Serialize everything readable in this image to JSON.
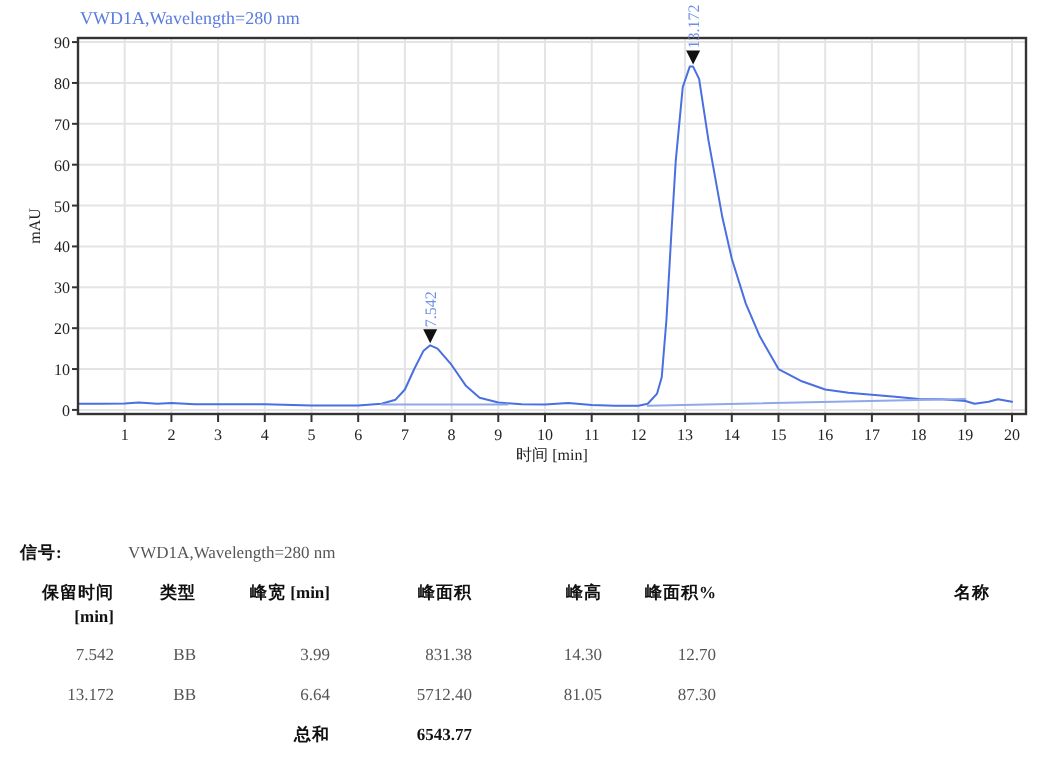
{
  "chart_data": {
    "type": "line",
    "title": "VWD1A,Wavelength=280 nm",
    "xlabel": "时间 [min]",
    "ylabel": "mAU",
    "xlim": [
      0,
      20.3
    ],
    "ylim": [
      -1,
      91
    ],
    "xticks": [
      1,
      2,
      3,
      4,
      5,
      6,
      7,
      8,
      9,
      10,
      11,
      12,
      13,
      14,
      15,
      16,
      17,
      18,
      19,
      20
    ],
    "yticks": [
      0,
      10,
      20,
      30,
      40,
      50,
      60,
      70,
      80,
      90
    ],
    "grid": true,
    "series": [
      {
        "color": "#4a6fe0",
        "x": [
          0,
          0.5,
          1,
          1.3,
          1.7,
          2,
          2.5,
          3,
          4,
          5,
          6,
          6.5,
          6.8,
          7,
          7.2,
          7.4,
          7.542,
          7.7,
          8,
          8.3,
          8.6,
          9,
          9.5,
          10,
          10.5,
          11,
          11.5,
          12,
          12.2,
          12.4,
          12.5,
          12.6,
          12.7,
          12.8,
          12.95,
          13.1,
          13.172,
          13.3,
          13.5,
          13.8,
          14,
          14.3,
          14.6,
          15,
          15.5,
          16,
          16.5,
          17,
          17.5,
          18,
          18.5,
          19,
          19.2,
          19.5,
          19.7,
          20
        ],
        "values": [
          1.5,
          1.5,
          1.6,
          1.8,
          1.5,
          1.7,
          1.4,
          1.4,
          1.4,
          1.1,
          1.1,
          1.5,
          2.5,
          5,
          10,
          14.5,
          15.8,
          15,
          11,
          6,
          3,
          1.8,
          1.4,
          1.3,
          1.7,
          1.2,
          1,
          1,
          1.5,
          4,
          8,
          22,
          42,
          61,
          79,
          84,
          84,
          81,
          66,
          47,
          37,
          26,
          18,
          10,
          7,
          5,
          4.2,
          3.7,
          3.2,
          2.7,
          2.6,
          2.2,
          1.5,
          2,
          2.6,
          2
        ]
      },
      {
        "color": "#8fa8e8",
        "x": [
          6.5,
          9.2
        ],
        "values": [
          1.3,
          1.3
        ]
      },
      {
        "color": "#8fa8e8",
        "x": [
          12.2,
          19
        ],
        "values": [
          1,
          2.7
        ]
      }
    ],
    "annotations": [
      {
        "text": "7.542",
        "x": 7.542,
        "y": 15.8
      },
      {
        "text": "13.172",
        "x": 13.172,
        "y": 84
      },
      "信号:",
      "VWD1A,Wavelength=280 nm",
      "保留时间 [min]",
      "类型",
      "峰宽 [min]",
      "峰面积",
      "峰高",
      "峰面积%",
      "名称",
      "7.542",
      "BB",
      "3.99",
      "831.38",
      "14.30",
      "12.70",
      "13.172",
      "BB",
      "6.64",
      "5712.40",
      "81.05",
      "87.30",
      "总和",
      "6543.77"
    ]
  }
}
